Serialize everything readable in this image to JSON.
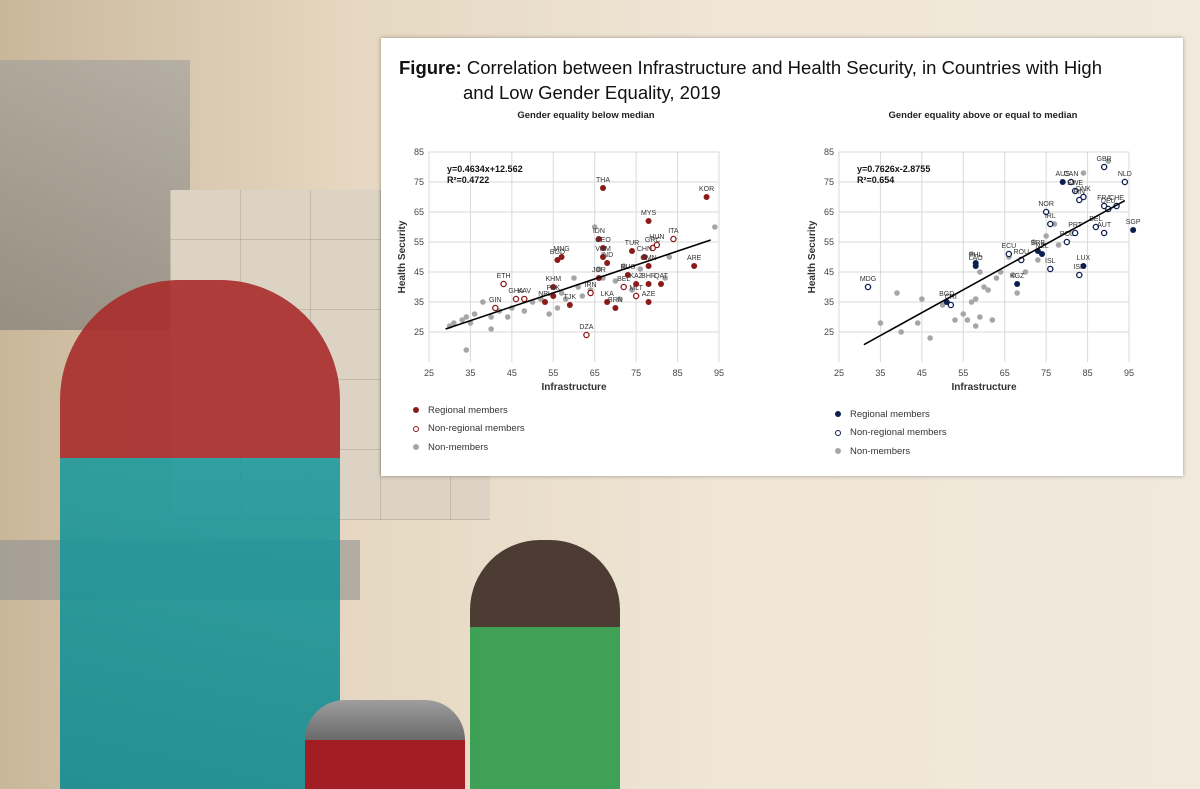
{
  "figure": {
    "label": "Figure:",
    "title_line1": "Correlation between Infrastructure and Health Security, in Countries with High",
    "title_line2": "and Low Gender Equality, 2019"
  },
  "colors": {
    "regional_left": "#8b1a1a",
    "regional_right": "#0d1f4f",
    "non_member": "#a6a6a6",
    "grid": "#d9d9d9"
  },
  "legend": {
    "regional": "Regional members",
    "non_regional": "Non-regional members",
    "non_members": "Non-members"
  },
  "chart_data": [
    {
      "type": "scatter",
      "title": "Gender equality below median",
      "xlabel": "Infrastructure",
      "ylabel": "Health Security",
      "xlim": [
        25,
        95
      ],
      "ylim": [
        15,
        85
      ],
      "xticks": [
        25,
        35,
        45,
        55,
        65,
        75,
        85,
        95
      ],
      "yticks": [
        25,
        35,
        45,
        55,
        65,
        75,
        85
      ],
      "equation": "y=0.4634x+12.562",
      "r2": "R²=0.4722",
      "trend": {
        "slope": 0.4634,
        "intercept": 12.562,
        "x_range": [
          29,
          93
        ]
      },
      "regional": [
        {
          "label": "THA",
          "x": 67,
          "y": 73
        },
        {
          "label": "KOR",
          "x": 92,
          "y": 70
        },
        {
          "label": "MYS",
          "x": 78,
          "y": 62
        },
        {
          "label": "IDN",
          "x": 66,
          "y": 56
        },
        {
          "label": "GEO",
          "x": 67,
          "y": 53
        },
        {
          "label": "BGD",
          "x": 56,
          "y": 49
        },
        {
          "label": "CHN",
          "x": 77,
          "y": 50
        },
        {
          "label": "VNM",
          "x": 67,
          "y": 50
        },
        {
          "label": "IND",
          "x": 68,
          "y": 48
        },
        {
          "label": "ARE",
          "x": 89,
          "y": 47
        },
        {
          "label": "OMN",
          "x": 78,
          "y": 47
        },
        {
          "label": "RUS",
          "x": 73,
          "y": 44
        },
        {
          "label": "JOR",
          "x": 66,
          "y": 43
        },
        {
          "label": "QAT",
          "x": 81,
          "y": 41
        },
        {
          "label": "BHR",
          "x": 78,
          "y": 41
        },
        {
          "label": "KAZ",
          "x": 75,
          "y": 41
        },
        {
          "label": "LKA",
          "x": 68,
          "y": 35
        },
        {
          "label": "BRN",
          "x": 70,
          "y": 33
        },
        {
          "label": "AZE",
          "x": 78,
          "y": 35
        },
        {
          "label": "KHM",
          "x": 55,
          "y": 40
        },
        {
          "label": "PAK",
          "x": 55,
          "y": 37
        },
        {
          "label": "NPL",
          "x": 53,
          "y": 35
        },
        {
          "label": "TJK",
          "x": 59,
          "y": 34
        },
        {
          "label": "TUR",
          "x": 74,
          "y": 52
        },
        {
          "label": "MNG",
          "x": 57,
          "y": 50
        }
      ],
      "non_regional": [
        {
          "label": "GRC",
          "x": 79,
          "y": 53
        },
        {
          "label": "HUN",
          "x": 80,
          "y": 54
        },
        {
          "label": "ITA",
          "x": 84,
          "y": 56
        },
        {
          "label": "ETH",
          "x": 43,
          "y": 41
        },
        {
          "label": "GHA",
          "x": 46,
          "y": 36
        },
        {
          "label": "KAV",
          "x": 48,
          "y": 36
        },
        {
          "label": "GIN",
          "x": 41,
          "y": 33
        },
        {
          "label": "DZA",
          "x": 63,
          "y": 24
        },
        {
          "label": "MLT",
          "x": 75,
          "y": 37
        },
        {
          "label": "BEL",
          "x": 72,
          "y": 40
        },
        {
          "label": "IRN",
          "x": 64,
          "y": 38
        }
      ],
      "non_members": [
        {
          "x": 30,
          "y": 27
        },
        {
          "x": 31,
          "y": 28
        },
        {
          "x": 33,
          "y": 29
        },
        {
          "x": 34,
          "y": 30
        },
        {
          "x": 35,
          "y": 28
        },
        {
          "x": 34,
          "y": 19
        },
        {
          "x": 40,
          "y": 26
        },
        {
          "x": 40,
          "y": 30
        },
        {
          "x": 42,
          "y": 32
        },
        {
          "x": 44,
          "y": 30
        },
        {
          "x": 46,
          "y": 36
        },
        {
          "x": 50,
          "y": 35
        },
        {
          "x": 52,
          "y": 36
        },
        {
          "x": 54,
          "y": 31
        },
        {
          "x": 56,
          "y": 33
        },
        {
          "x": 58,
          "y": 36
        },
        {
          "x": 60,
          "y": 43
        },
        {
          "x": 62,
          "y": 37
        },
        {
          "x": 64,
          "y": 39
        },
        {
          "x": 65,
          "y": 60
        },
        {
          "x": 66,
          "y": 46
        },
        {
          "x": 67,
          "y": 43
        },
        {
          "x": 70,
          "y": 42
        },
        {
          "x": 71,
          "y": 36
        },
        {
          "x": 72,
          "y": 47
        },
        {
          "x": 74,
          "y": 39
        },
        {
          "x": 76,
          "y": 46
        },
        {
          "x": 82,
          "y": 43
        },
        {
          "x": 83,
          "y": 50
        },
        {
          "x": 94,
          "y": 60
        },
        {
          "x": 45,
          "y": 33
        },
        {
          "x": 48,
          "y": 32
        },
        {
          "x": 38,
          "y": 35
        },
        {
          "x": 36,
          "y": 31
        },
        {
          "x": 57,
          "y": 38
        },
        {
          "x": 61,
          "y": 40
        }
      ]
    },
    {
      "type": "scatter",
      "title": "Gender equality above or equal to median",
      "xlabel": "Infrastructure",
      "ylabel": "Health Security",
      "xlim": [
        25,
        95
      ],
      "ylim": [
        15,
        85
      ],
      "xticks": [
        25,
        35,
        45,
        55,
        65,
        75,
        85,
        95
      ],
      "yticks": [
        25,
        35,
        45,
        55,
        65,
        75,
        85
      ],
      "equation": "y=0.7626x-2.8755",
      "r2": "R²=0.654",
      "trend": {
        "slope": 0.7626,
        "intercept": -2.8755,
        "x_range": [
          31,
          94
        ]
      },
      "regional": [
        {
          "label": "AUS",
          "x": 79,
          "y": 75
        },
        {
          "label": "SGP",
          "x": 96,
          "y": 59
        },
        {
          "label": "LUX",
          "x": 84,
          "y": 47
        },
        {
          "label": "LAO",
          "x": 58,
          "y": 47
        },
        {
          "label": "BGD",
          "x": 51,
          "y": 35
        },
        {
          "label": "PHL",
          "x": 58,
          "y": 48
        },
        {
          "label": "KGZ",
          "x": 68,
          "y": 41
        },
        {
          "label": "NZL",
          "x": 74,
          "y": 51
        },
        {
          "label": "SRB",
          "x": 73,
          "y": 52
        }
      ],
      "non_regional": [
        {
          "label": "CAN",
          "x": 81,
          "y": 75
        },
        {
          "label": "NLD",
          "x": 94,
          "y": 75
        },
        {
          "label": "GBR",
          "x": 89,
          "y": 80
        },
        {
          "label": "SWE",
          "x": 82,
          "y": 72
        },
        {
          "label": "DNK",
          "x": 84,
          "y": 70
        },
        {
          "label": "FIN",
          "x": 83,
          "y": 69
        },
        {
          "label": "FRA",
          "x": 89,
          "y": 67
        },
        {
          "label": "CHE",
          "x": 92,
          "y": 67
        },
        {
          "label": "DEU",
          "x": 90,
          "y": 66
        },
        {
          "label": "NOR",
          "x": 75,
          "y": 65
        },
        {
          "label": "IRL",
          "x": 76,
          "y": 61
        },
        {
          "label": "PRT",
          "x": 82,
          "y": 58
        },
        {
          "label": "BEL",
          "x": 87,
          "y": 60
        },
        {
          "label": "AUT",
          "x": 89,
          "y": 58
        },
        {
          "label": "POL",
          "x": 80,
          "y": 55
        },
        {
          "label": "ECU",
          "x": 66,
          "y": 51
        },
        {
          "label": "ROU",
          "x": 69,
          "y": 49
        },
        {
          "label": "ISL",
          "x": 76,
          "y": 46
        },
        {
          "label": "ISR",
          "x": 83,
          "y": 44
        },
        {
          "label": "MDG",
          "x": 32,
          "y": 40
        },
        {
          "label": "CRI",
          "x": 52,
          "y": 34
        }
      ],
      "non_members": [
        {
          "x": 35,
          "y": 28
        },
        {
          "x": 39,
          "y": 38
        },
        {
          "x": 40,
          "y": 25
        },
        {
          "x": 44,
          "y": 28
        },
        {
          "x": 45,
          "y": 36
        },
        {
          "x": 47,
          "y": 23
        },
        {
          "x": 50,
          "y": 34
        },
        {
          "x": 53,
          "y": 29
        },
        {
          "x": 55,
          "y": 31
        },
        {
          "x": 56,
          "y": 29
        },
        {
          "x": 57,
          "y": 35
        },
        {
          "x": 58,
          "y": 36
        },
        {
          "x": 58,
          "y": 27
        },
        {
          "x": 59,
          "y": 30
        },
        {
          "x": 60,
          "y": 40
        },
        {
          "x": 61,
          "y": 39
        },
        {
          "x": 62,
          "y": 29
        },
        {
          "x": 63,
          "y": 43
        },
        {
          "x": 64,
          "y": 45
        },
        {
          "x": 66,
          "y": 50
        },
        {
          "x": 67,
          "y": 44
        },
        {
          "x": 68,
          "y": 38
        },
        {
          "x": 70,
          "y": 45
        },
        {
          "x": 72,
          "y": 55
        },
        {
          "x": 73,
          "y": 49
        },
        {
          "x": 75,
          "y": 57
        },
        {
          "x": 77,
          "y": 61
        },
        {
          "x": 78,
          "y": 54
        },
        {
          "x": 84,
          "y": 78
        },
        {
          "x": 90,
          "y": 82
        },
        {
          "x": 57,
          "y": 51
        },
        {
          "x": 59,
          "y": 45
        }
      ]
    }
  ]
}
